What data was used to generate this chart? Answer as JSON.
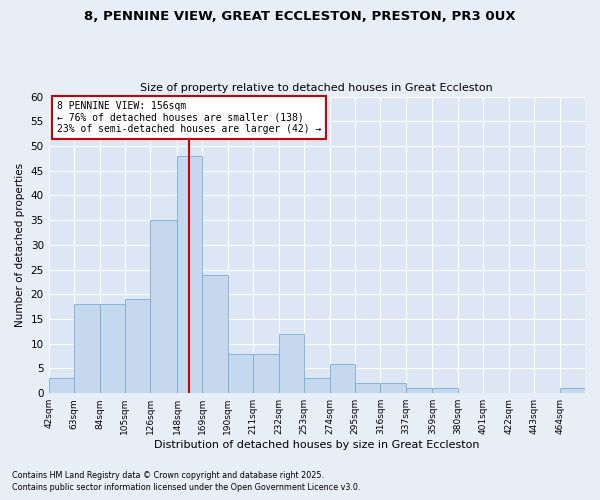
{
  "title1": "8, PENNINE VIEW, GREAT ECCLESTON, PRESTON, PR3 0UX",
  "title2": "Size of property relative to detached houses in Great Eccleston",
  "xlabel": "Distribution of detached houses by size in Great Eccleston",
  "ylabel": "Number of detached properties",
  "footnote1": "Contains HM Land Registry data © Crown copyright and database right 2025.",
  "footnote2": "Contains public sector information licensed under the Open Government Licence v3.0.",
  "annotation_line1": "8 PENNINE VIEW: 156sqm",
  "annotation_line2": "← 76% of detached houses are smaller (138)",
  "annotation_line3": "23% of semi-detached houses are larger (42) →",
  "categories": [
    "42sqm",
    "63sqm",
    "84sqm",
    "105sqm",
    "126sqm",
    "148sqm",
    "169sqm",
    "190sqm",
    "211sqm",
    "232sqm",
    "253sqm",
    "274sqm",
    "295sqm",
    "316sqm",
    "337sqm",
    "359sqm",
    "380sqm",
    "401sqm",
    "422sqm",
    "443sqm",
    "464sqm"
  ],
  "bin_edges": [
    42,
    63,
    84,
    105,
    126,
    148,
    169,
    190,
    211,
    232,
    253,
    274,
    295,
    316,
    337,
    359,
    380,
    401,
    422,
    443,
    464,
    485
  ],
  "values": [
    3,
    18,
    18,
    19,
    35,
    48,
    24,
    8,
    8,
    12,
    3,
    6,
    2,
    2,
    1,
    1,
    0,
    0,
    0,
    0,
    1
  ],
  "bar_color": "#c5d8ed",
  "bar_edge_color": "#7aadd4",
  "vline_color": "#cc0000",
  "annotation_box_color": "#cc0000",
  "background_color": "#dce6f5",
  "fig_background_color": "#e8eef8",
  "grid_color": "#ffffff",
  "ylim": [
    0,
    60
  ],
  "yticks": [
    0,
    5,
    10,
    15,
    20,
    25,
    30,
    35,
    40,
    45,
    50,
    55,
    60
  ]
}
